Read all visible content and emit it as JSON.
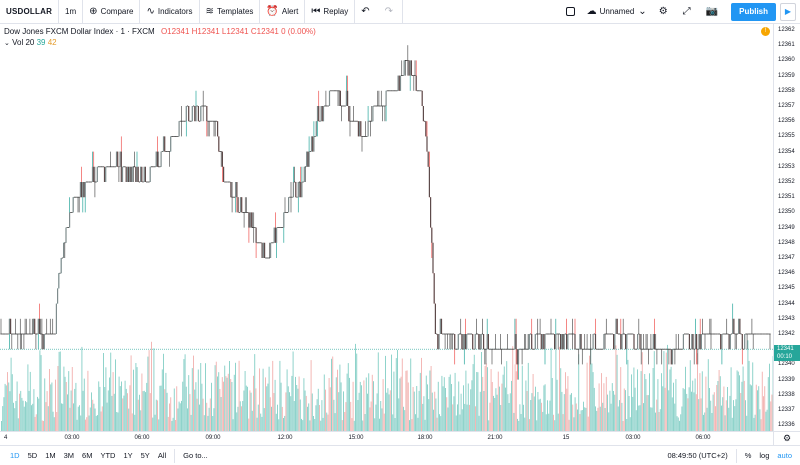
{
  "toolbar": {
    "symbol": "USDOLLAR",
    "interval": "1m",
    "compare": "Compare",
    "indicators": "Indicators",
    "templates": "Templates",
    "alert": "Alert",
    "replay": "Replay",
    "layout_name": "Unnamed",
    "publish": "Publish"
  },
  "legend": {
    "title": "Dow Jones FXCM Dollar Index · 1 · FXCM",
    "o": "O12341",
    "h": "H12341",
    "l": "L12341",
    "c": "C12341",
    "change": "0 (0.00%)",
    "vol_label": "Vol 20",
    "vol_value": "39",
    "vol_ma": "42"
  },
  "colors": {
    "up": "#26a69a",
    "down": "#ef5350",
    "accent": "#2196f3"
  },
  "price_axis": {
    "ticks": [
      "12362",
      "12361",
      "12360",
      "12359",
      "12358",
      "12357",
      "12356",
      "12355",
      "12354",
      "12353",
      "12352",
      "12351",
      "12350",
      "12349",
      "12348",
      "12347",
      "12346",
      "12345",
      "12344",
      "12343",
      "12342",
      "12341",
      "12340",
      "12339",
      "12338",
      "12337",
      "12336"
    ],
    "current_price": "12341",
    "countdown": "00:10"
  },
  "time_axis": {
    "ticks": [
      "4",
      "03:00",
      "06:00",
      "09:00",
      "12:00",
      "15:00",
      "18:00",
      "21:00",
      "15",
      "03:00",
      "06:00"
    ]
  },
  "bottom": {
    "ranges": [
      "1D",
      "5D",
      "1M",
      "3M",
      "6M",
      "YTD",
      "1Y",
      "5Y",
      "All"
    ],
    "goto": "Go to...",
    "clock": "08:49:50 (UTC+2)",
    "percent": "%",
    "log": "log",
    "auto": "auto"
  },
  "chart_data": {
    "type": "candlestick",
    "price_range": [
      12336,
      12362
    ],
    "x_labels": [
      "4",
      "03:00",
      "06:00",
      "09:00",
      "12:00",
      "15:00",
      "18:00",
      "21:00",
      "15",
      "03:00",
      "06:00"
    ],
    "price_path": [
      [
        0,
        12342
      ],
      [
        0.07,
        12342
      ],
      [
        0.075,
        12346
      ],
      [
        0.09,
        12350
      ],
      [
        0.11,
        12352
      ],
      [
        0.13,
        12353
      ],
      [
        0.16,
        12353
      ],
      [
        0.19,
        12352
      ],
      [
        0.21,
        12354
      ],
      [
        0.24,
        12356
      ],
      [
        0.26,
        12357
      ],
      [
        0.28,
        12356
      ],
      [
        0.29,
        12352
      ],
      [
        0.32,
        12350
      ],
      [
        0.345,
        12347
      ],
      [
        0.37,
        12350
      ],
      [
        0.39,
        12352
      ],
      [
        0.41,
        12356
      ],
      [
        0.43,
        12358
      ],
      [
        0.45,
        12357
      ],
      [
        0.47,
        12355
      ],
      [
        0.49,
        12357
      ],
      [
        0.51,
        12358
      ],
      [
        0.53,
        12360
      ],
      [
        0.545,
        12358
      ],
      [
        0.555,
        12354
      ],
      [
        0.565,
        12342
      ],
      [
        0.6,
        12342
      ],
      [
        0.64,
        12341
      ],
      [
        0.68,
        12341
      ],
      [
        0.72,
        12342
      ],
      [
        0.76,
        12341
      ],
      [
        0.8,
        12342
      ],
      [
        0.84,
        12341
      ],
      [
        0.88,
        12341
      ],
      [
        0.92,
        12342
      ],
      [
        0.96,
        12342
      ],
      [
        1.0,
        12342
      ]
    ]
  }
}
